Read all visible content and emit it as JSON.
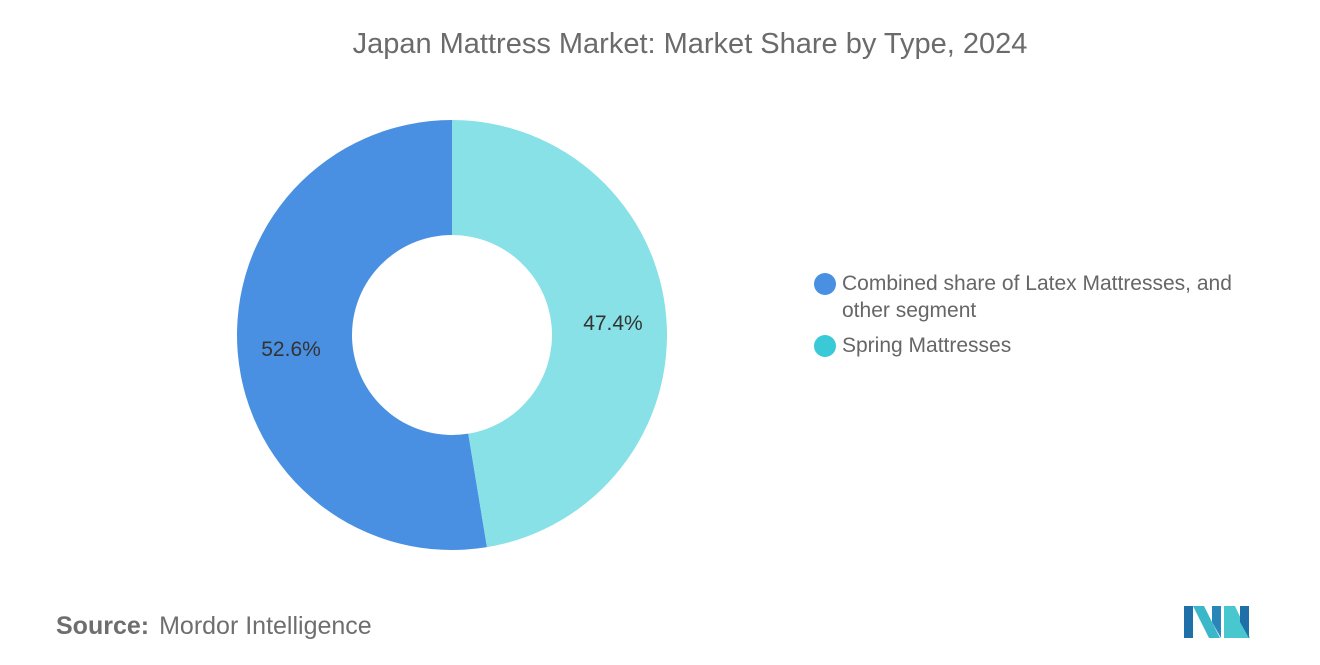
{
  "chart_data": {
    "type": "pie",
    "title": "Japan Mattress Market: Market Share by Type, 2024",
    "series": [
      {
        "name": "Combined share of Latex Mattresses, and other segment",
        "value": 52.6,
        "label": "52.6%",
        "color": "#4a90e2"
      },
      {
        "name": "Spring Mattresses",
        "value": 47.4,
        "label": "47.4%",
        "color": "#88e1e6"
      }
    ],
    "legend": {
      "placement": "right",
      "items": [
        {
          "label": "Combined share of Latex Mattresses, and other segment",
          "color": "#4a90e2"
        },
        {
          "label": "Spring Mattresses",
          "color": "#3ac9d6"
        }
      ]
    }
  },
  "source": {
    "label": "Source:",
    "value": "Mordor Intelligence"
  }
}
